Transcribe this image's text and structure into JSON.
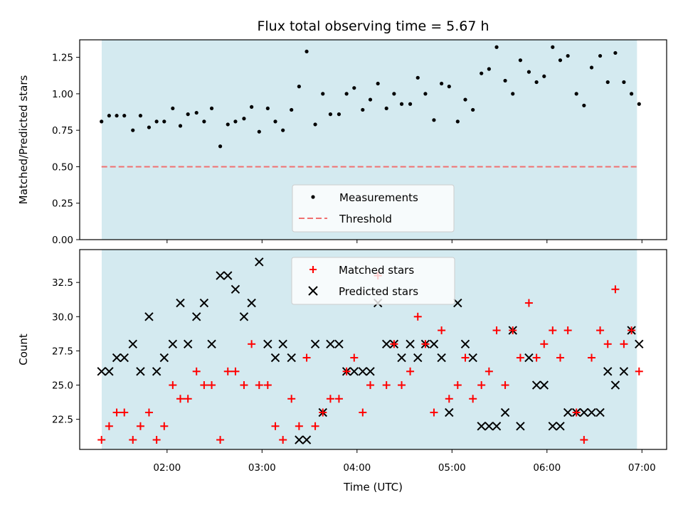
{
  "chart_data": [
    {
      "type": "scatter",
      "title": "Flux total observing time = 5.67 h",
      "xlabel": "",
      "ylabel": "Matched/Predicted stars",
      "ylim": [
        0,
        1.37
      ],
      "yticks": [
        0.0,
        0.25,
        0.5,
        0.75,
        1.0,
        1.25
      ],
      "ytick_labels": [
        "0.00",
        "0.25",
        "0.50",
        "0.75",
        "1.00",
        "1.25"
      ],
      "observing_window_hours": [
        1.312,
        6.948
      ],
      "background_color": "#d4eaf0",
      "threshold": 0.5,
      "legend": {
        "position": "lower-center",
        "entries": [
          "Measurements",
          "Threshold"
        ]
      },
      "series": [
        {
          "name": "Measurements",
          "color": "#000000",
          "marker": "dot",
          "x": [
            1.31,
            1.39,
            1.47,
            1.55,
            1.64,
            1.72,
            1.81,
            1.89,
            1.97,
            2.06,
            2.14,
            2.22,
            2.31,
            2.39,
            2.47,
            2.56,
            2.64,
            2.72,
            2.81,
            2.89,
            2.97,
            3.06,
            3.14,
            3.22,
            3.31,
            3.39,
            3.47,
            3.56,
            3.64,
            3.72,
            3.81,
            3.89,
            3.97,
            4.06,
            4.14,
            4.22,
            4.31,
            4.39,
            4.47,
            4.56,
            4.64,
            4.72,
            4.81,
            4.89,
            4.97,
            5.06,
            5.14,
            5.22,
            5.31,
            5.39,
            5.47,
            5.56,
            5.64,
            5.72,
            5.81,
            5.89,
            5.97,
            6.06,
            6.14,
            6.22,
            6.31,
            6.39,
            6.47,
            6.56,
            6.64,
            6.72,
            6.81,
            6.89,
            6.97
          ],
          "y": [
            0.81,
            0.85,
            0.85,
            0.85,
            0.75,
            0.85,
            0.77,
            0.81,
            0.81,
            0.9,
            0.78,
            0.86,
            0.87,
            0.81,
            0.9,
            0.64,
            0.79,
            0.81,
            0.83,
            0.91,
            0.74,
            0.9,
            0.81,
            0.75,
            0.89,
            1.05,
            1.29,
            0.79,
            1.0,
            0.86,
            0.86,
            1.0,
            1.04,
            0.89,
            0.96,
            1.07,
            0.9,
            1.0,
            0.93,
            0.93,
            1.11,
            1.0,
            0.82,
            1.07,
            1.05,
            0.81,
            0.96,
            0.89,
            1.14,
            1.17,
            1.32,
            1.09,
            1.0,
            1.23,
            1.15,
            1.08,
            1.12,
            1.32,
            1.23,
            1.26,
            1.0,
            0.92,
            1.18,
            1.26,
            1.08,
            1.28,
            1.08,
            1.0,
            0.93
          ]
        },
        {
          "name": "Threshold",
          "color": "#f07070",
          "style": "dashed",
          "x": [
            1.31,
            6.95
          ],
          "y": [
            0.5,
            0.5
          ]
        }
      ]
    },
    {
      "type": "scatter",
      "title": "",
      "xlabel": "Time (UTC)",
      "ylabel": "Count",
      "ylim": [
        20.3,
        34.9
      ],
      "yticks": [
        22.5,
        25.0,
        27.5,
        30.0,
        32.5
      ],
      "ytick_labels": [
        "22.5",
        "25.0",
        "27.5",
        "30.0",
        "32.5"
      ],
      "xlim": [
        1.08,
        7.26
      ],
      "xticks": [
        2,
        3,
        4,
        5,
        6,
        7
      ],
      "xtick_labels": [
        "02:00",
        "03:00",
        "04:00",
        "05:00",
        "06:00",
        "07:00"
      ],
      "observing_window_hours": [
        1.312,
        6.948
      ],
      "background_color": "#d4eaf0",
      "legend": {
        "position": "top-center",
        "entries": [
          "Matched stars",
          "Predicted stars"
        ]
      },
      "series": [
        {
          "name": "Matched stars",
          "color": "#ff0000",
          "marker": "plus",
          "x": [
            1.31,
            1.39,
            1.47,
            1.55,
            1.64,
            1.72,
            1.81,
            1.89,
            1.97,
            2.06,
            2.14,
            2.22,
            2.31,
            2.39,
            2.47,
            2.56,
            2.64,
            2.72,
            2.81,
            2.89,
            2.97,
            3.06,
            3.14,
            3.22,
            3.31,
            3.39,
            3.47,
            3.56,
            3.64,
            3.72,
            3.81,
            3.89,
            3.97,
            4.06,
            4.14,
            4.22,
            4.31,
            4.39,
            4.47,
            4.56,
            4.64,
            4.72,
            4.81,
            4.89,
            4.97,
            5.06,
            5.14,
            5.22,
            5.31,
            5.39,
            5.47,
            5.56,
            5.64,
            5.72,
            5.81,
            5.89,
            5.97,
            6.06,
            6.14,
            6.22,
            6.31,
            6.39,
            6.47,
            6.56,
            6.64,
            6.72,
            6.81,
            6.89,
            6.97
          ],
          "y": [
            21,
            22,
            23,
            23,
            21,
            22,
            23,
            21,
            22,
            25,
            24,
            24,
            26,
            25,
            25,
            21,
            26,
            26,
            25,
            28,
            25,
            25,
            22,
            21,
            24,
            22,
            27,
            22,
            23,
            24,
            24,
            26,
            27,
            23,
            25,
            33,
            25,
            28,
            25,
            26,
            30,
            28,
            23,
            29,
            24,
            25,
            27,
            24,
            25,
            26,
            29,
            25,
            29,
            27,
            31,
            27,
            28,
            29,
            27,
            29,
            23,
            21,
            27,
            29,
            28,
            32,
            28,
            29,
            26
          ]
        },
        {
          "name": "Predicted stars",
          "color": "#000000",
          "marker": "x",
          "x": [
            1.31,
            1.39,
            1.47,
            1.55,
            1.64,
            1.72,
            1.81,
            1.89,
            1.97,
            2.06,
            2.14,
            2.22,
            2.31,
            2.39,
            2.47,
            2.56,
            2.64,
            2.72,
            2.81,
            2.89,
            2.97,
            3.06,
            3.14,
            3.22,
            3.31,
            3.39,
            3.47,
            3.56,
            3.64,
            3.72,
            3.81,
            3.89,
            3.97,
            4.06,
            4.14,
            4.22,
            4.31,
            4.39,
            4.47,
            4.56,
            4.64,
            4.72,
            4.81,
            4.89,
            4.97,
            5.06,
            5.14,
            5.22,
            5.31,
            5.39,
            5.47,
            5.56,
            5.64,
            5.72,
            5.81,
            5.89,
            5.97,
            6.06,
            6.14,
            6.22,
            6.31,
            6.39,
            6.47,
            6.56,
            6.64,
            6.72,
            6.81,
            6.89,
            6.97
          ],
          "y": [
            26,
            26,
            27,
            27,
            28,
            26,
            30,
            26,
            27,
            28,
            31,
            28,
            30,
            31,
            28,
            33,
            33,
            32,
            30,
            31,
            34,
            28,
            27,
            28,
            27,
            21,
            21,
            28,
            23,
            28,
            28,
            26,
            26,
            26,
            26,
            31,
            28,
            28,
            27,
            28,
            27,
            28,
            28,
            27,
            23,
            31,
            28,
            27,
            22,
            22,
            22,
            23,
            29,
            22,
            27,
            25,
            25,
            22,
            22,
            23,
            23,
            23,
            23,
            23,
            26,
            25,
            26,
            29,
            28
          ]
        }
      ]
    }
  ]
}
